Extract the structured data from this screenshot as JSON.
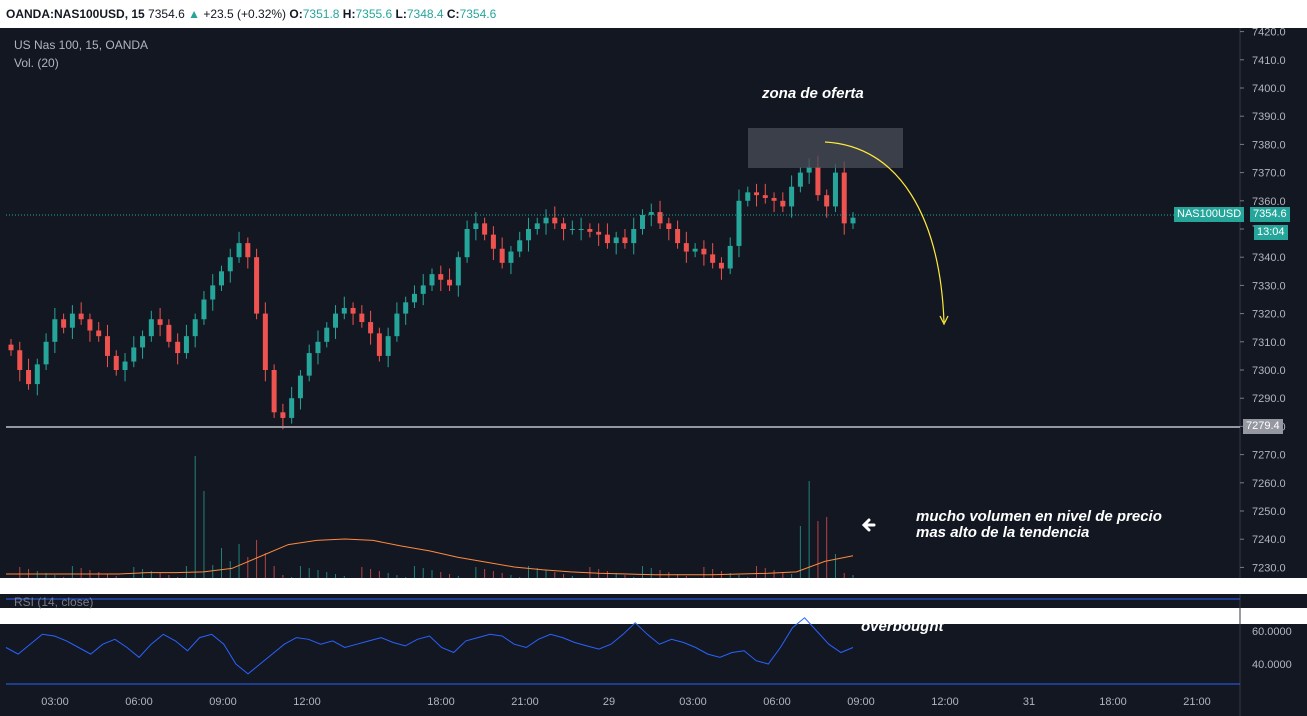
{
  "header": {
    "symbol": "OANDA:NAS100USD, 15",
    "last": "7354.6",
    "change": "+23.5 (+0.32%)",
    "open_label": "O:",
    "open": "7351.8",
    "high_label": "H:",
    "high": "7355.6",
    "low_label": "L:",
    "low": "7348.4",
    "close_label": "C:",
    "close": "7354.6"
  },
  "legend": {
    "title": "US Nas 100, 15, OANDA",
    "volume": "Vol. (20)",
    "rsi": "RSI (14, close)"
  },
  "price_scale": [
    "7420.0",
    "7410.0",
    "7400.0",
    "7390.0",
    "7380.0",
    "7370.0",
    "7360.0",
    "7350.0",
    "7340.0",
    "7330.0",
    "7320.0",
    "7310.0",
    "7300.0",
    "7290.0",
    "7280.0",
    "7270.0",
    "7260.0",
    "7250.0",
    "7240.0",
    "7230.0"
  ],
  "rsi_scale": [
    "60.0000",
    "40.0000"
  ],
  "time_labels": [
    "03:00",
    "06:00",
    "09:00",
    "12:00",
    "18:00",
    "21:00",
    "29",
    "03:00",
    "06:00",
    "09:00",
    "12:00",
    "31",
    "18:00",
    "21:00"
  ],
  "price_tag": {
    "symbol": "NAS100USD",
    "price": "7354.6",
    "countdown": "13:04"
  },
  "support_level": "7279.4",
  "annotations": {
    "supply_zone": "zona de oferta",
    "volume_note_line1": "mucho volumen en nivel de precio",
    "volume_note_line2": "mas alto de la tendencia",
    "overbought": "overbought"
  },
  "colors": {
    "background": "#131722",
    "bull": "#26a69a",
    "bear": "#ef5350",
    "volume_ma": "#ff8a3d",
    "rsi": "#2962ff",
    "arrow": "#ffeb3b",
    "zone": "#4a4d57"
  },
  "chart_data": {
    "type": "candlestick",
    "interval": "15",
    "ylim": [
      7275,
      7425
    ],
    "last_price": 7354.6,
    "support": 7279.4,
    "candles_close": [
      7307,
      7300,
      7295,
      7302,
      7310,
      7318,
      7315,
      7320,
      7318,
      7314,
      7312,
      7305,
      7300,
      7303,
      7308,
      7312,
      7318,
      7316,
      7310,
      7306,
      7312,
      7318,
      7325,
      7330,
      7335,
      7340,
      7345,
      7340,
      7320,
      7300,
      7285,
      7283,
      7290,
      7298,
      7306,
      7310,
      7315,
      7320,
      7322,
      7320,
      7317,
      7313,
      7305,
      7312,
      7320,
      7324,
      7327,
      7330,
      7334,
      7332,
      7330,
      7340,
      7350,
      7352,
      7348,
      7343,
      7338,
      7342,
      7346,
      7350,
      7352,
      7354,
      7352,
      7350,
      7350,
      7350,
      7349,
      7348,
      7345,
      7347,
      7345,
      7350,
      7355,
      7356,
      7352,
      7350,
      7345,
      7342,
      7343,
      7341,
      7338,
      7336,
      7344,
      7360,
      7363,
      7362,
      7361,
      7360,
      7358,
      7365,
      7370,
      7372,
      7362,
      7358,
      7370,
      7352,
      7354
    ],
    "rsi_values": [
      50,
      46,
      52,
      58,
      57,
      54,
      50,
      46,
      52,
      55,
      50,
      44,
      52,
      58,
      54,
      48,
      56,
      58,
      52,
      40,
      34,
      40,
      46,
      52,
      56,
      55,
      52,
      54,
      50,
      52,
      54,
      56,
      53,
      51,
      55,
      57,
      50,
      47,
      54,
      56,
      58,
      57,
      52,
      50,
      55,
      58,
      56,
      53,
      51,
      49,
      52,
      58,
      65,
      58,
      52,
      55,
      53,
      50,
      46,
      44,
      47,
      48,
      42,
      40,
      50,
      62,
      68,
      60,
      52,
      47,
      50
    ],
    "volume_ma": [
      1,
      1,
      1,
      1,
      1,
      1.2,
      1.2,
      1.3,
      1.8,
      3.5,
      5.2,
      5.8,
      6,
      5.8,
      5,
      4.3,
      3.4,
      2.7,
      2,
      1.6,
      1.3,
      1.1,
      1,
      0.9,
      0.9,
      0.9,
      1,
      1.1,
      1.3,
      2.8,
      3.6
    ]
  }
}
